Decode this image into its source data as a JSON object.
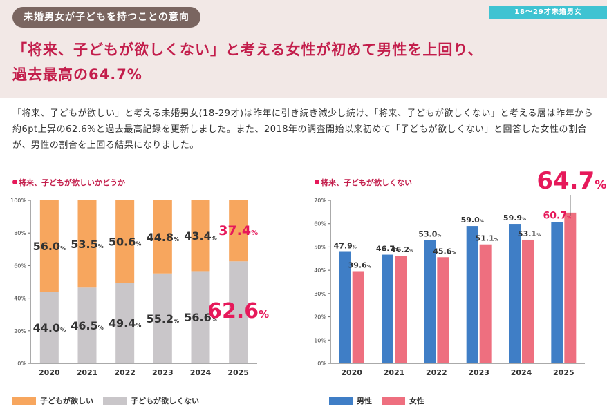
{
  "header": {
    "pill": "未婚男女が子どもを持つことの意向",
    "tag": "18～29才未婚男女",
    "headline_line1": "「将来、子どもが欲しくない」と考える女性が初めて男性を上回り、",
    "headline_line2": "過去最高の64.7%"
  },
  "body_text": "「将来、子どもが欲しい」と考える未婚男女(18-29才)は昨年に引き続き減少し続け、「将来、子どもが欲しくない」と考える層は昨年から約6pt上昇の62.6%と過去最高記録を更新しました。また、2018年の調査開始以来初めて「子どもが欲しくない」と回答した女性の割合が、男性の割合を上回る結果になりました。",
  "colors": {
    "want": "#f7a65e",
    "not_want": "#c9c6c9",
    "male": "#3f7ec6",
    "female": "#ee6f7f",
    "accent": "#e6195a"
  },
  "chart_data": [
    {
      "type": "bar",
      "stacked": true,
      "title": "将来、子どもが欲しいかどうか",
      "categories": [
        "2020",
        "2021",
        "2022",
        "2023",
        "2024",
        "2025"
      ],
      "series": [
        {
          "name": "子どもが欲しくない",
          "values": [
            44.0,
            46.5,
            49.4,
            55.2,
            56.6,
            62.6
          ]
        },
        {
          "name": "子どもが欲しい",
          "values": [
            56.0,
            53.5,
            50.6,
            44.8,
            43.4,
            37.4
          ]
        }
      ],
      "value_labels_not_want": [
        "44.0",
        "46.5",
        "49.4",
        "55.2",
        "56.6",
        "62.6"
      ],
      "value_labels_want": [
        "56.0",
        "53.5",
        "50.6",
        "44.8",
        "43.4",
        "37.4"
      ],
      "yticks": [
        "0%",
        "20%",
        "40%",
        "60%",
        "80%",
        "100%"
      ],
      "ylim": [
        0,
        100
      ],
      "unit": "%"
    },
    {
      "type": "bar",
      "title": "将来、子どもが欲しくない",
      "categories": [
        "2020",
        "2021",
        "2022",
        "2023",
        "2024",
        "2025"
      ],
      "series": [
        {
          "name": "男性",
          "values": [
            47.9,
            46.7,
            53.0,
            59.0,
            59.9,
            60.7
          ]
        },
        {
          "name": "女性",
          "values": [
            39.6,
            46.2,
            45.6,
            51.1,
            53.1,
            64.7
          ]
        }
      ],
      "value_labels_male": [
        "47.9",
        "46.7",
        "53.0",
        "59.0",
        "59.9",
        "60.7"
      ],
      "value_labels_female": [
        "39.6",
        "46.2",
        "45.6",
        "51.1",
        "53.1",
        "64.7"
      ],
      "yticks": [
        "0%",
        "10%",
        "20%",
        "30%",
        "40%",
        "50%",
        "60%",
        "70%"
      ],
      "ylim": [
        0,
        70
      ],
      "unit": "%"
    }
  ]
}
